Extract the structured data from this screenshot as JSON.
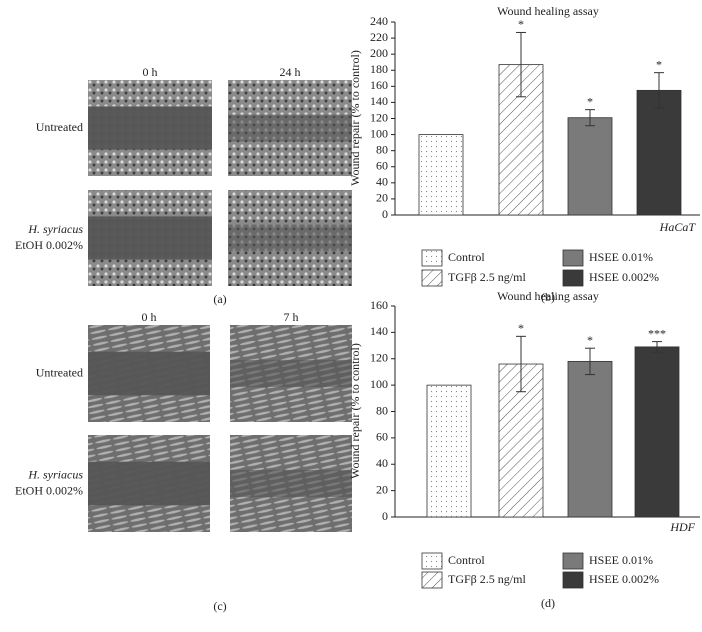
{
  "panels": [
    {
      "label": "(a)",
      "columns": [
        "0 h",
        "24 h"
      ],
      "rows": [
        {
          "text": "Untreated"
        },
        {
          "species": "H. syriacus",
          "treatment": "EtOH 0.002%"
        }
      ]
    },
    {
      "label": "(c)",
      "columns": [
        "0 h",
        "7 h"
      ],
      "rows": [
        {
          "text": "Untreated"
        },
        {
          "species": "H. syriacus",
          "treatment": "EtOH 0.002%"
        }
      ]
    }
  ],
  "chart_data": [
    {
      "type": "bar",
      "label": "(b)",
      "title": "Wound healing assay",
      "y_label": "Wound repair (% to control)",
      "cell_line": "HaCaT",
      "categories": [
        "Control",
        "TGFβ 2.5 ng/ml",
        "HSEE 0.01%",
        "HSEE 0.002%"
      ],
      "values": [
        100,
        187,
        121,
        155
      ],
      "errors": [
        0,
        40,
        10,
        22
      ],
      "annotations": [
        null,
        "*",
        "*",
        "*"
      ],
      "fills": [
        "dots",
        "hatch",
        "#7a7a7a",
        "#3a3a3a"
      ],
      "ylim": [
        0,
        240
      ],
      "yticks": [
        0,
        20,
        40,
        60,
        80,
        100,
        120,
        140,
        160,
        180,
        200,
        220,
        240
      ]
    },
    {
      "type": "bar",
      "label": "(d)",
      "title": "Wound healing assay",
      "y_label": "Wound repair (% to control)",
      "cell_line": "HDF",
      "categories": [
        "Control",
        "TGFβ 2.5 ng/ml",
        "HSEE 0.01%",
        "HSEE 0.002%"
      ],
      "values": [
        100,
        116,
        118,
        129
      ],
      "errors": [
        0,
        21,
        10,
        4
      ],
      "annotations": [
        null,
        "*",
        "*",
        "***"
      ],
      "fills": [
        "dots",
        "hatch",
        "#7a7a7a",
        "#3a3a3a"
      ],
      "ylim": [
        0,
        160
      ],
      "yticks": [
        0,
        20,
        40,
        60,
        80,
        100,
        120,
        140,
        160
      ]
    }
  ]
}
